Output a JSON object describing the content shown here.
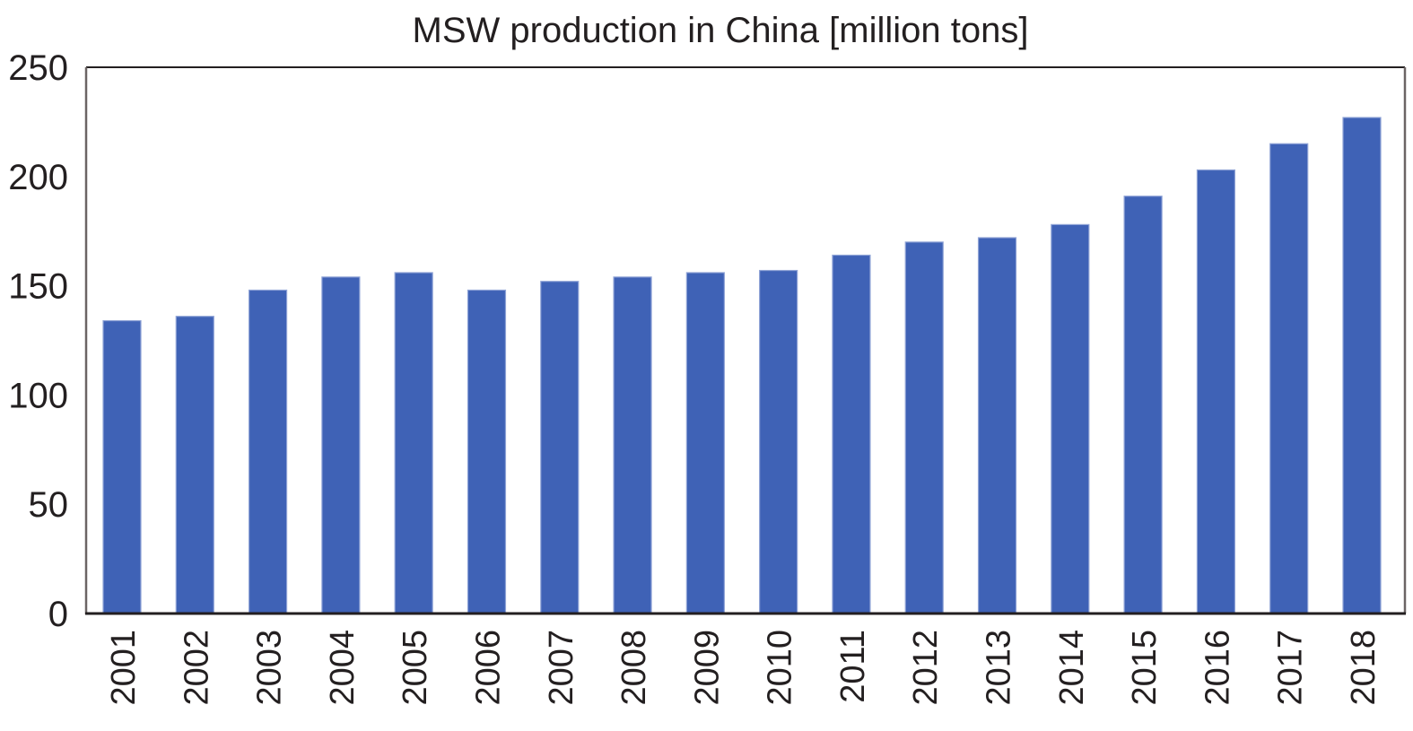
{
  "chart_data": {
    "type": "bar",
    "title": "MSW production in China [million tons]",
    "xlabel": "",
    "ylabel": "",
    "ylim": [
      0,
      250
    ],
    "yticks": [
      0,
      50,
      100,
      150,
      200,
      250
    ],
    "grid": false,
    "legend": "none",
    "categories": [
      "2001",
      "2002",
      "2003",
      "2004",
      "2005",
      "2006",
      "2007",
      "2008",
      "2009",
      "2010",
      "2011",
      "2012",
      "2013",
      "2014",
      "2015",
      "2016",
      "2017",
      "2018"
    ],
    "series": [
      {
        "name": "MSW production",
        "color": "#3f62b6",
        "values": [
          134,
          136,
          148,
          154,
          156,
          148,
          152,
          154,
          156,
          157,
          164,
          170,
          172,
          178,
          191,
          203,
          215,
          227
        ]
      }
    ]
  }
}
